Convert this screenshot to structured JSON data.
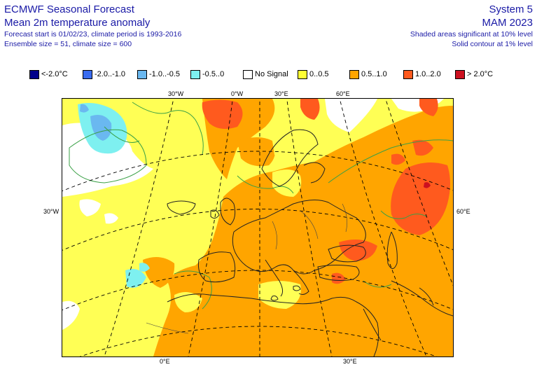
{
  "header": {
    "title": "ECMWF Seasonal Forecast",
    "subtitle": "Mean 2m temperature anomaly",
    "line3": "Forecast start is 01/02/23, climate period is 1993-2016",
    "line4": "Ensemble size = 51, climate size = 600",
    "system": "System 5",
    "season": "MAM 2023",
    "note1": "Shaded areas significant at 10% level",
    "note2": "Solid contour at 1% level"
  },
  "legend": [
    {
      "label": "<-2.0°C",
      "color": "#00008b"
    },
    {
      "label": "-2.0..-1.0",
      "color": "#3a6cf0"
    },
    {
      "label": "-1.0..-0.5",
      "color": "#6ab8f0"
    },
    {
      "label": "-0.5..0",
      "color": "#7ef0f0"
    },
    {
      "label": "No Signal",
      "color": "#ffffff"
    },
    {
      "label": "0..0.5",
      "color": "#ffff33"
    },
    {
      "label": "0.5..1.0",
      "color": "#ffa500"
    },
    {
      "label": "1.0..2.0",
      "color": "#ff5a1e"
    },
    {
      "label": "> 2.0°C",
      "color": "#cc1020"
    }
  ],
  "ticks": {
    "top": [
      "30°W",
      "0°W",
      "30°E",
      "60°E"
    ],
    "left": "30°W",
    "right": "60°E",
    "bottom": [
      "0°E",
      "30°E"
    ]
  }
}
